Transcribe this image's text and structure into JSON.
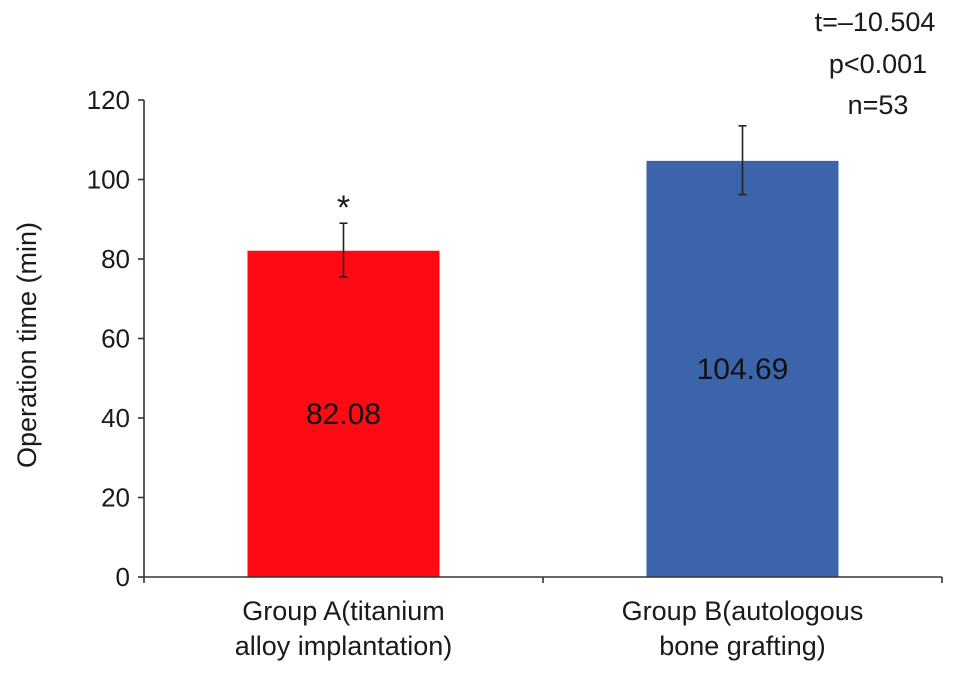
{
  "chart_data": {
    "type": "bar",
    "title": "",
    "xlabel": "",
    "ylabel": "Operation time (min)",
    "ylim": [
      0,
      120
    ],
    "yticks": [
      0,
      20,
      40,
      60,
      80,
      100,
      120
    ],
    "grid": false,
    "categories": [
      [
        "Group A(titanium",
        "alloy implantation)"
      ],
      [
        "Group B(autologous",
        "bone grafting)"
      ]
    ],
    "values": [
      82.08,
      104.69
    ],
    "value_labels": [
      "82.08",
      "104.69"
    ],
    "error_bars": [
      {
        "low": 75.5,
        "high": 89.0
      },
      {
        "low": 96.2,
        "high": 113.5
      }
    ],
    "colors": [
      "#ff0a14",
      "#3c64aa"
    ],
    "significance_marks": [
      "*",
      ""
    ],
    "annotations": [
      "t=–10.504",
      "p<0.001",
      "n=53"
    ]
  }
}
